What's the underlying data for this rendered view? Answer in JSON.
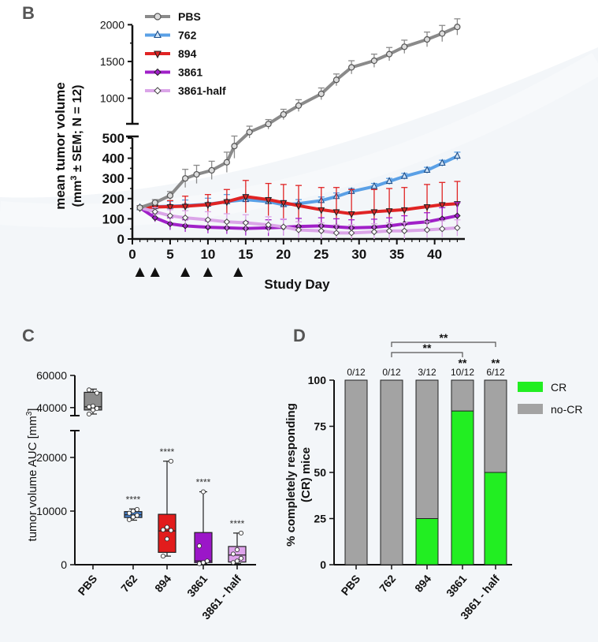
{
  "panel_labels": {
    "b": "B",
    "c": "C",
    "d": "D"
  },
  "chart_data": [
    {
      "panel": "B",
      "type": "line",
      "xlabel": "Study Day",
      "ylabel": "mean tumor volume",
      "ylabel2_pre": "(mm",
      "ylabel2_sup": "3",
      "ylabel2_post": " ± SEM; N = 12)",
      "y_ticks_lower": [
        "0",
        "100",
        "200",
        "300",
        "400",
        "500"
      ],
      "y_ticks_upper": [
        "1000",
        "1500",
        "2000"
      ],
      "x_ticks": [
        "0",
        "5",
        "10",
        "15",
        "20",
        "25",
        "30",
        "35",
        "40"
      ],
      "xlim": [
        0,
        44
      ],
      "ylim_lower": [
        0,
        500
      ],
      "ylim_upper": [
        620,
        2100
      ],
      "dosing_days": [
        1,
        3,
        7,
        10,
        14
      ],
      "series": [
        {
          "name": "PBS",
          "color": "#8a8a8a",
          "marker": "circle",
          "x": [
            1,
            3,
            5,
            7,
            8.5,
            10.5,
            12.5,
            13.5,
            15.5,
            18,
            20,
            22,
            25,
            27,
            29,
            32,
            34,
            36,
            39,
            41,
            43
          ],
          "y": [
            155,
            180,
            215,
            300,
            320,
            340,
            380,
            460,
            560,
            650,
            780,
            900,
            1060,
            1250,
            1420,
            1510,
            1600,
            1700,
            1800,
            1880,
            1970
          ],
          "err": [
            10,
            15,
            20,
            45,
            45,
            45,
            50,
            60,
            60,
            60,
            70,
            80,
            80,
            80,
            90,
            90,
            90,
            90,
            100,
            110,
            110
          ]
        },
        {
          "name": "762",
          "color": "#5aa0e6",
          "marker": "triangle-up",
          "x": [
            1,
            3,
            5,
            7,
            10,
            12.5,
            15,
            18,
            20,
            22,
            25,
            27,
            29,
            32,
            34,
            36,
            39,
            41,
            43
          ],
          "y": [
            155,
            160,
            162,
            165,
            172,
            185,
            195,
            185,
            170,
            175,
            190,
            210,
            235,
            260,
            285,
            310,
            340,
            375,
            410
          ],
          "err": [
            8,
            20,
            25,
            28,
            30,
            35,
            25,
            20,
            20,
            20,
            18,
            18,
            15,
            15,
            15,
            15,
            15,
            15,
            20
          ]
        },
        {
          "name": "894",
          "color": "#e02424",
          "marker": "triangle-down",
          "x": [
            1,
            3,
            5,
            7,
            10,
            12.5,
            15,
            18,
            20,
            22,
            25,
            27,
            29,
            32,
            34,
            36,
            39,
            41,
            43
          ],
          "y": [
            155,
            158,
            160,
            162,
            170,
            185,
            210,
            195,
            180,
            165,
            145,
            135,
            125,
            135,
            140,
            145,
            160,
            170,
            175
          ],
          "err": [
            8,
            20,
            30,
            50,
            50,
            60,
            80,
            80,
            90,
            100,
            110,
            120,
            120,
            110,
            110,
            110,
            110,
            110,
            110
          ]
        },
        {
          "name": "3861",
          "color": "#a020c8",
          "marker": "diamond",
          "x": [
            1,
            3,
            5,
            7,
            10,
            12.5,
            15,
            18,
            20,
            22,
            25,
            27,
            29,
            32,
            34,
            36,
            39,
            41,
            43
          ],
          "y": [
            155,
            105,
            75,
            65,
            58,
            55,
            52,
            55,
            58,
            62,
            65,
            60,
            55,
            58,
            65,
            75,
            85,
            100,
            115
          ],
          "err": [
            8,
            20,
            30,
            30,
            30,
            30,
            35,
            40,
            40,
            40,
            40,
            40,
            40,
            40,
            40,
            40,
            45,
            55,
            65
          ]
        },
        {
          "name": "3861-half",
          "color": "#dba5e8",
          "marker": "diamond-open",
          "x": [
            1,
            3,
            5,
            7,
            10,
            12.5,
            15,
            18,
            20,
            22,
            25,
            27,
            29,
            32,
            34,
            36,
            39,
            41,
            43
          ],
          "y": [
            155,
            135,
            115,
            105,
            95,
            85,
            80,
            70,
            60,
            45,
            40,
            30,
            30,
            35,
            40,
            40,
            45,
            50,
            55
          ],
          "err": [
            8,
            20,
            30,
            35,
            40,
            40,
            40,
            40,
            40,
            40,
            40,
            40,
            40,
            40,
            40,
            40,
            40,
            40,
            40
          ]
        }
      ]
    },
    {
      "panel": "C",
      "type": "box",
      "ylabel_pre": "tumor volume AUC [mm",
      "ylabel_sup": "3",
      "ylabel_post": "]",
      "y_ticks_lower": [
        "0",
        "10000",
        "20000"
      ],
      "y_ticks_upper": [
        "40000",
        "60000"
      ],
      "categories": [
        "PBS",
        "762",
        "894",
        "3861",
        "3861 - half"
      ],
      "boxes": [
        {
          "name": "PBS",
          "min": 36000,
          "q1": 38500,
          "median": 40500,
          "q3": 49500,
          "max": 51500,
          "color": "#8c8c8c",
          "points": [
            36000,
            38500,
            39500,
            40500,
            41000,
            49000,
            51000
          ]
        },
        {
          "name": "762",
          "min": 8300,
          "q1": 8800,
          "median": 9300,
          "q3": 9900,
          "max": 10400,
          "color": "#4a86d4",
          "stars": "****",
          "points": [
            8400,
            8900,
            9200,
            9600,
            10000,
            10300
          ]
        },
        {
          "name": "894",
          "min": 1600,
          "q1": 2300,
          "median": 6300,
          "q3": 9400,
          "max": 19300,
          "color": "#e21c1c",
          "stars": "****",
          "points": [
            1600,
            4800,
            6400,
            6500,
            7000,
            19300
          ]
        },
        {
          "name": "3861",
          "min": 200,
          "q1": 400,
          "median": 700,
          "q3": 6000,
          "max": 13600,
          "color": "#9b16c8",
          "stars": "****",
          "points": [
            200,
            400,
            700,
            3500,
            13600
          ]
        },
        {
          "name": "3861 - half",
          "min": 200,
          "q1": 500,
          "median": 1800,
          "q3": 3400,
          "max": 5900,
          "color": "#dea3ec",
          "stars": "****",
          "points": [
            400,
            700,
            1200,
            2000,
            2800,
            5900
          ]
        }
      ]
    },
    {
      "panel": "D",
      "type": "bar",
      "stacked": true,
      "ylabel_line1": "% completely responding",
      "ylabel_line2": "(CR) mice",
      "y_ticks": [
        "0",
        "25",
        "50",
        "75",
        "100"
      ],
      "ylim": [
        0,
        100
      ],
      "categories": [
        "PBS",
        "762",
        "894",
        "3861",
        "3861 - half"
      ],
      "series": [
        {
          "name": "CR",
          "color": "#22ee22",
          "values": [
            0,
            0,
            25,
            83.3,
            50
          ]
        },
        {
          "name": "no-CR",
          "color": "#a3a3a3",
          "values": [
            100,
            100,
            75,
            16.7,
            50
          ]
        }
      ],
      "fraction_labels": [
        "0/12",
        "0/12",
        "3/12",
        "10/12",
        "6/12"
      ],
      "bar_stars": [
        "",
        "",
        "",
        "**",
        "**"
      ],
      "brackets": [
        {
          "from": "762",
          "to": "3861",
          "label": "**"
        },
        {
          "from": "762",
          "to": "3861 - half",
          "label": "**"
        }
      ]
    }
  ]
}
